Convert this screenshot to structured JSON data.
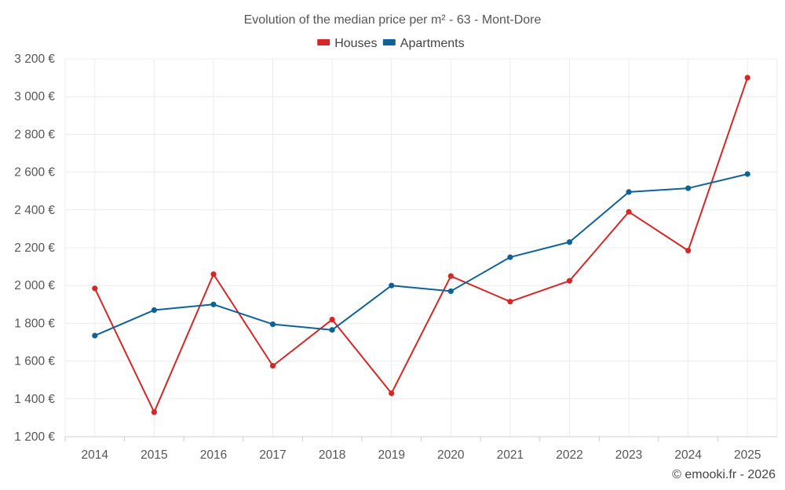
{
  "chart_data": {
    "type": "line",
    "title": "Evolution of the median price per m² - 63 - Mont-Dore",
    "categories": [
      "2014",
      "2015",
      "2016",
      "2017",
      "2018",
      "2019",
      "2020",
      "2021",
      "2022",
      "2023",
      "2024",
      "2025"
    ],
    "series": [
      {
        "name": "Houses",
        "color": "#d62728",
        "values": [
          1985,
          1330,
          2060,
          1575,
          1820,
          1430,
          2050,
          1915,
          2025,
          2390,
          2185,
          3100
        ]
      },
      {
        "name": "Apartments",
        "color": "#0f6296",
        "values": [
          1735,
          1870,
          1900,
          1795,
          1765,
          2000,
          1970,
          2150,
          2230,
          2495,
          2515,
          2590
        ]
      }
    ],
    "ylim": [
      1200,
      3200
    ],
    "yticks": [
      1200,
      1400,
      1600,
      1800,
      2000,
      2200,
      2400,
      2600,
      2800,
      3000,
      3200
    ],
    "ytick_labels": [
      "1 200 €",
      "1 400 €",
      "1 600 €",
      "1 800 €",
      "2 000 €",
      "2 200 €",
      "2 400 €",
      "2 600 €",
      "2 800 €",
      "3 000 €",
      "3 200 €"
    ],
    "xlabel": "",
    "ylabel": "",
    "grid": true,
    "legend_position": "top-center"
  },
  "credit": "© emooki.fr - 2026"
}
